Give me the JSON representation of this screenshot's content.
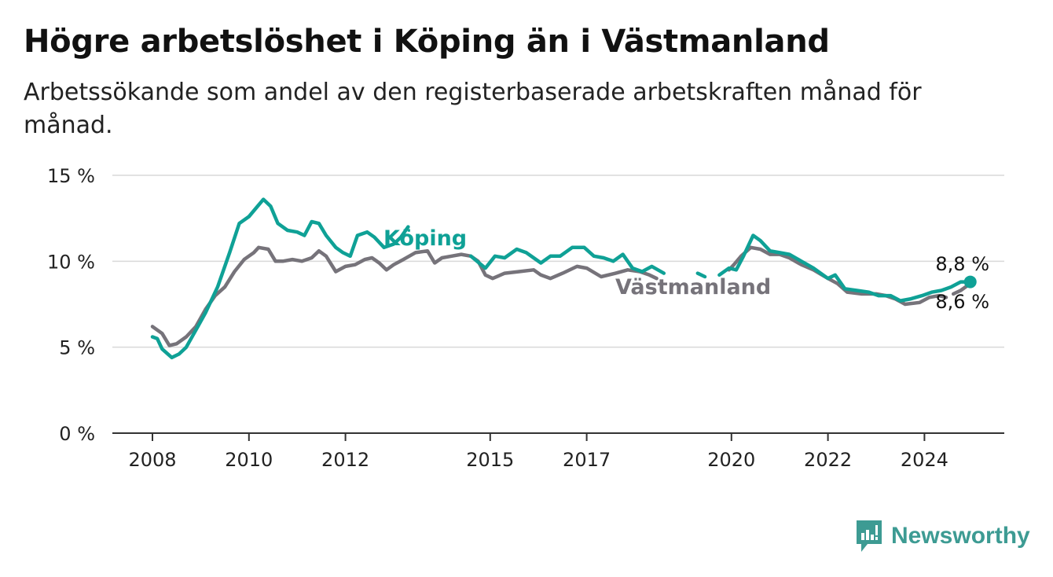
{
  "title": "Högre arbetslöshet i Köping än i Västmanland",
  "subtitle": "Arbetssökande som andel av den registerbaserade arbetskraften månad för månad.",
  "brand": {
    "name": "Newsworthy",
    "icon": "newsworthy-logo-icon",
    "color": "#3d9b93"
  },
  "chart_data": {
    "type": "line",
    "title": "",
    "xlabel": "",
    "ylabel": "",
    "ylim": [
      0,
      15
    ],
    "xlim": [
      2007.5,
      2025.75
    ],
    "y_ticks": [
      {
        "value": 0,
        "label": "0 %"
      },
      {
        "value": 5,
        "label": "5 %"
      },
      {
        "value": 10,
        "label": "10 %"
      },
      {
        "value": 15,
        "label": "15 %"
      }
    ],
    "x_ticks": [
      {
        "value": 2008,
        "label": "2008"
      },
      {
        "value": 2010,
        "label": "2010"
      },
      {
        "value": 2012,
        "label": "2012"
      },
      {
        "value": 2015,
        "label": "2015"
      },
      {
        "value": 2017,
        "label": "2017"
      },
      {
        "value": 2020,
        "label": "2020"
      },
      {
        "value": 2022,
        "label": "2022"
      },
      {
        "value": 2024,
        "label": "2024"
      }
    ],
    "grid": "horizontal",
    "series": [
      {
        "name": "Västmanland",
        "color": "#76737a",
        "end_label": "8,6 %",
        "points": [
          [
            2008.0,
            6.2
          ],
          [
            2008.2,
            5.8
          ],
          [
            2008.35,
            5.1
          ],
          [
            2008.5,
            5.2
          ],
          [
            2008.7,
            5.6
          ],
          [
            2008.9,
            6.2
          ],
          [
            2009.1,
            7.2
          ],
          [
            2009.3,
            8.0
          ],
          [
            2009.5,
            8.5
          ],
          [
            2009.7,
            9.4
          ],
          [
            2009.9,
            10.1
          ],
          [
            2010.1,
            10.5
          ],
          [
            2010.2,
            10.8
          ],
          [
            2010.4,
            10.7
          ],
          [
            2010.55,
            10.0
          ],
          [
            2010.7,
            10.0
          ],
          [
            2010.9,
            10.1
          ],
          [
            2011.1,
            10.0
          ],
          [
            2011.3,
            10.2
          ],
          [
            2011.45,
            10.6
          ],
          [
            2011.6,
            10.3
          ],
          [
            2011.8,
            9.4
          ],
          [
            2012.0,
            9.7
          ],
          [
            2012.2,
            9.8
          ],
          [
            2012.4,
            10.1
          ],
          [
            2012.55,
            10.2
          ],
          [
            2012.7,
            9.9
          ],
          [
            2012.85,
            9.5
          ],
          [
            2013.0,
            9.8
          ],
          [
            2013.2,
            10.1
          ],
          [
            2013.45,
            10.5
          ],
          [
            2013.7,
            10.6
          ],
          [
            2013.85,
            9.9
          ],
          [
            2014.0,
            10.2
          ],
          [
            2014.2,
            10.3
          ],
          [
            2014.4,
            10.4
          ],
          [
            2014.6,
            10.3
          ],
          [
            2014.75,
            10.0
          ],
          [
            2014.9,
            9.2
          ],
          [
            2015.05,
            9.0
          ],
          [
            2015.3,
            9.3
          ],
          [
            2015.6,
            9.4
          ],
          [
            2015.9,
            9.5
          ],
          [
            2016.05,
            9.2
          ],
          [
            2016.25,
            9.0
          ],
          [
            2016.5,
            9.3
          ],
          [
            2016.8,
            9.7
          ],
          [
            2017.0,
            9.6
          ],
          [
            2017.3,
            9.1
          ],
          [
            2017.6,
            9.3
          ],
          [
            2017.85,
            9.5
          ],
          [
            2018.1,
            9.4
          ],
          [
            2018.3,
            9.2
          ],
          [
            2018.45,
            9.0
          ]
        ],
        "points_2": [
          [
            2019.95,
            9.5
          ],
          [
            2020.05,
            9.8
          ],
          [
            2020.2,
            10.3
          ],
          [
            2020.4,
            10.8
          ],
          [
            2020.6,
            10.7
          ],
          [
            2020.8,
            10.4
          ],
          [
            2021.0,
            10.4
          ],
          [
            2021.2,
            10.2
          ],
          [
            2021.45,
            9.8
          ],
          [
            2021.7,
            9.5
          ],
          [
            2022.0,
            9.0
          ],
          [
            2022.2,
            8.7
          ],
          [
            2022.4,
            8.2
          ],
          [
            2022.7,
            8.1
          ],
          [
            2023.0,
            8.1
          ],
          [
            2023.2,
            8.0
          ],
          [
            2023.4,
            7.8
          ],
          [
            2023.6,
            7.5
          ],
          [
            2023.9,
            7.6
          ],
          [
            2024.1,
            7.9
          ],
          [
            2024.3,
            8.0
          ],
          [
            2024.45,
            7.9
          ]
        ],
        "points_3": [
          [
            2024.6,
            8.1
          ],
          [
            2024.75,
            8.3
          ],
          [
            2024.9,
            8.6
          ]
        ]
      },
      {
        "name": "Köping",
        "color": "#0fa196",
        "end_label": "8,8 %",
        "points": [
          [
            2008.0,
            5.6
          ],
          [
            2008.1,
            5.5
          ],
          [
            2008.2,
            4.9
          ],
          [
            2008.4,
            4.4
          ],
          [
            2008.55,
            4.6
          ],
          [
            2008.7,
            5.0
          ],
          [
            2008.9,
            6.0
          ],
          [
            2009.1,
            7.0
          ],
          [
            2009.35,
            8.5
          ],
          [
            2009.6,
            10.5
          ],
          [
            2009.8,
            12.2
          ],
          [
            2010.0,
            12.6
          ],
          [
            2010.15,
            13.1
          ],
          [
            2010.3,
            13.6
          ],
          [
            2010.45,
            13.2
          ],
          [
            2010.6,
            12.2
          ],
          [
            2010.8,
            11.8
          ],
          [
            2011.0,
            11.7
          ],
          [
            2011.15,
            11.5
          ],
          [
            2011.3,
            12.3
          ],
          [
            2011.45,
            12.2
          ],
          [
            2011.6,
            11.5
          ],
          [
            2011.8,
            10.8
          ],
          [
            2011.95,
            10.5
          ],
          [
            2012.1,
            10.3
          ],
          [
            2012.25,
            11.5
          ],
          [
            2012.45,
            11.7
          ],
          [
            2012.6,
            11.4
          ],
          [
            2012.8,
            10.8
          ],
          [
            2013.0,
            11.0
          ],
          [
            2013.15,
            11.4
          ],
          [
            2013.3,
            12.0
          ]
        ],
        "points_2": [
          [
            2014.6,
            10.3
          ],
          [
            2014.9,
            9.6
          ],
          [
            2015.1,
            10.3
          ],
          [
            2015.3,
            10.2
          ],
          [
            2015.55,
            10.7
          ],
          [
            2015.75,
            10.5
          ],
          [
            2015.9,
            10.2
          ],
          [
            2016.05,
            9.9
          ],
          [
            2016.25,
            10.3
          ],
          [
            2016.45,
            10.3
          ],
          [
            2016.7,
            10.8
          ],
          [
            2016.95,
            10.8
          ],
          [
            2017.15,
            10.3
          ],
          [
            2017.35,
            10.2
          ],
          [
            2017.55,
            10.0
          ],
          [
            2017.75,
            10.4
          ],
          [
            2017.95,
            9.6
          ],
          [
            2018.15,
            9.4
          ],
          [
            2018.35,
            9.7
          ],
          [
            2018.6,
            9.3
          ]
        ],
        "points_3": [
          [
            2019.3,
            9.3
          ],
          [
            2019.45,
            9.1
          ]
        ],
        "points_4": [
          [
            2019.75,
            9.2
          ],
          [
            2019.95,
            9.6
          ],
          [
            2020.1,
            9.5
          ],
          [
            2020.25,
            10.3
          ],
          [
            2020.45,
            11.5
          ],
          [
            2020.6,
            11.2
          ],
          [
            2020.8,
            10.6
          ],
          [
            2021.0,
            10.5
          ],
          [
            2021.2,
            10.4
          ],
          [
            2021.45,
            10.0
          ],
          [
            2021.7,
            9.6
          ],
          [
            2022.0,
            9.0
          ],
          [
            2022.15,
            9.2
          ],
          [
            2022.35,
            8.4
          ],
          [
            2022.6,
            8.3
          ],
          [
            2022.85,
            8.2
          ],
          [
            2023.05,
            8.0
          ],
          [
            2023.3,
            8.0
          ],
          [
            2023.5,
            7.7
          ],
          [
            2023.7,
            7.8
          ],
          [
            2023.95,
            8.0
          ],
          [
            2024.15,
            8.2
          ],
          [
            2024.35,
            8.3
          ],
          [
            2024.55,
            8.5
          ],
          [
            2024.75,
            8.8
          ],
          [
            2024.95,
            8.8
          ]
        ]
      }
    ],
    "labels": [
      {
        "series": "Köping",
        "text": "Köping"
      },
      {
        "series": "Västmanland",
        "text": "Västmanland"
      }
    ]
  }
}
